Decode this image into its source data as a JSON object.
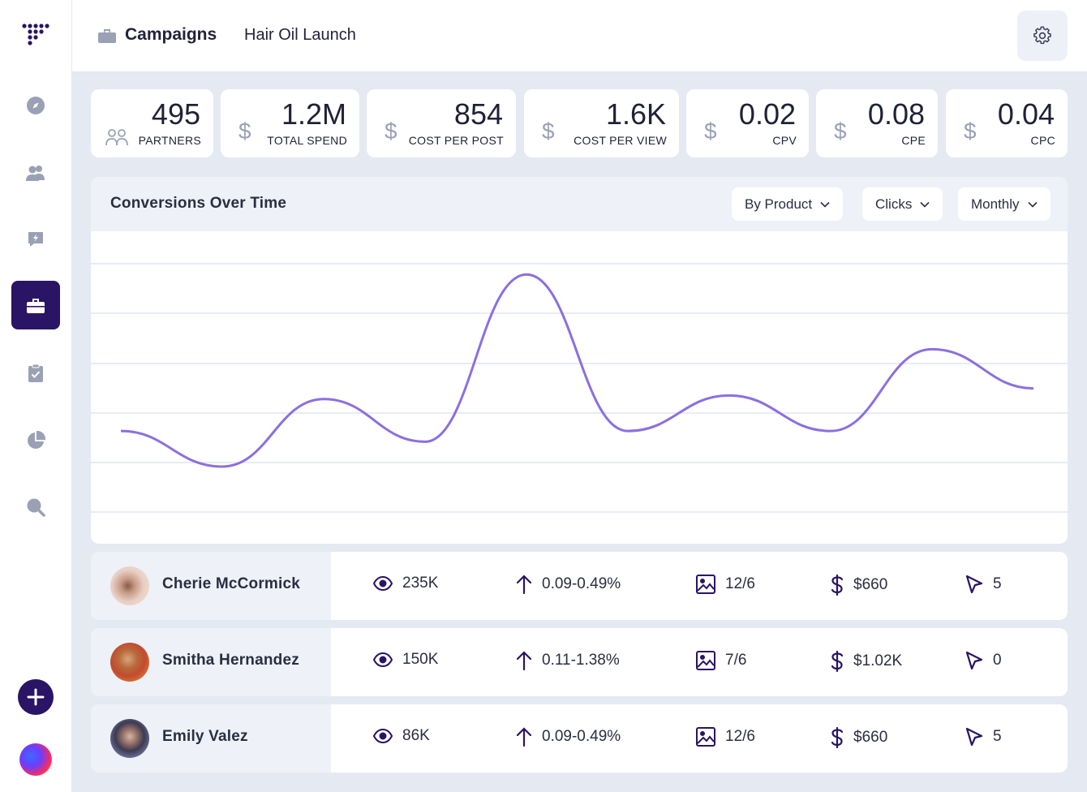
{
  "header": {
    "title": "Campaigns",
    "subtitle": "Hair Oil Launch"
  },
  "stats": [
    {
      "value": "495",
      "label": "PARTNERS",
      "icon": "partners-icon"
    },
    {
      "value": "1.2M",
      "label": "TOTAL SPEND",
      "icon": "dollar-icon"
    },
    {
      "value": "854",
      "label": "COST PER POST",
      "icon": "dollar-icon"
    },
    {
      "value": "1.6K",
      "label": "COST PER VIEW",
      "icon": "dollar-icon"
    },
    {
      "value": "0.02",
      "label": "CPV",
      "icon": "dollar-icon"
    },
    {
      "value": "0.08",
      "label": "CPE",
      "icon": "dollar-icon"
    },
    {
      "value": "0.04",
      "label": "CPC",
      "icon": "dollar-icon"
    }
  ],
  "chart": {
    "title": "Conversions Over Time",
    "filters": [
      "By Product",
      "Clicks",
      "Monthly"
    ],
    "line_color": "#8b6fe0"
  },
  "chart_data": {
    "type": "line",
    "title": "Conversions Over Time",
    "xlabel": "",
    "ylabel": "",
    "ylim": [
      0,
      6
    ],
    "grid": true,
    "series": [
      {
        "name": "Clicks",
        "values": [
          1.0,
          0.0,
          1.9,
          0.7,
          5.4,
          1.0,
          2.0,
          1.0,
          3.3,
          2.2
        ]
      }
    ]
  },
  "partners": [
    {
      "name": "Cherie McCormick",
      "views": "235K",
      "rate": "0.09-0.49%",
      "posts": "12/6",
      "spend": "$660",
      "clicks": "5"
    },
    {
      "name": "Smitha Hernandez",
      "views": "150K",
      "rate": "0.11-1.38%",
      "posts": "7/6",
      "spend": "$1.02K",
      "clicks": "0"
    },
    {
      "name": "Emily Valez",
      "views": "86K",
      "rate": "0.09-0.49%",
      "posts": "12/6",
      "spend": "$660",
      "clicks": "5"
    }
  ],
  "colors": {
    "accent": "#2a1466",
    "icon_gray": "#9aa1b5",
    "bg": "#e5e9f2"
  }
}
